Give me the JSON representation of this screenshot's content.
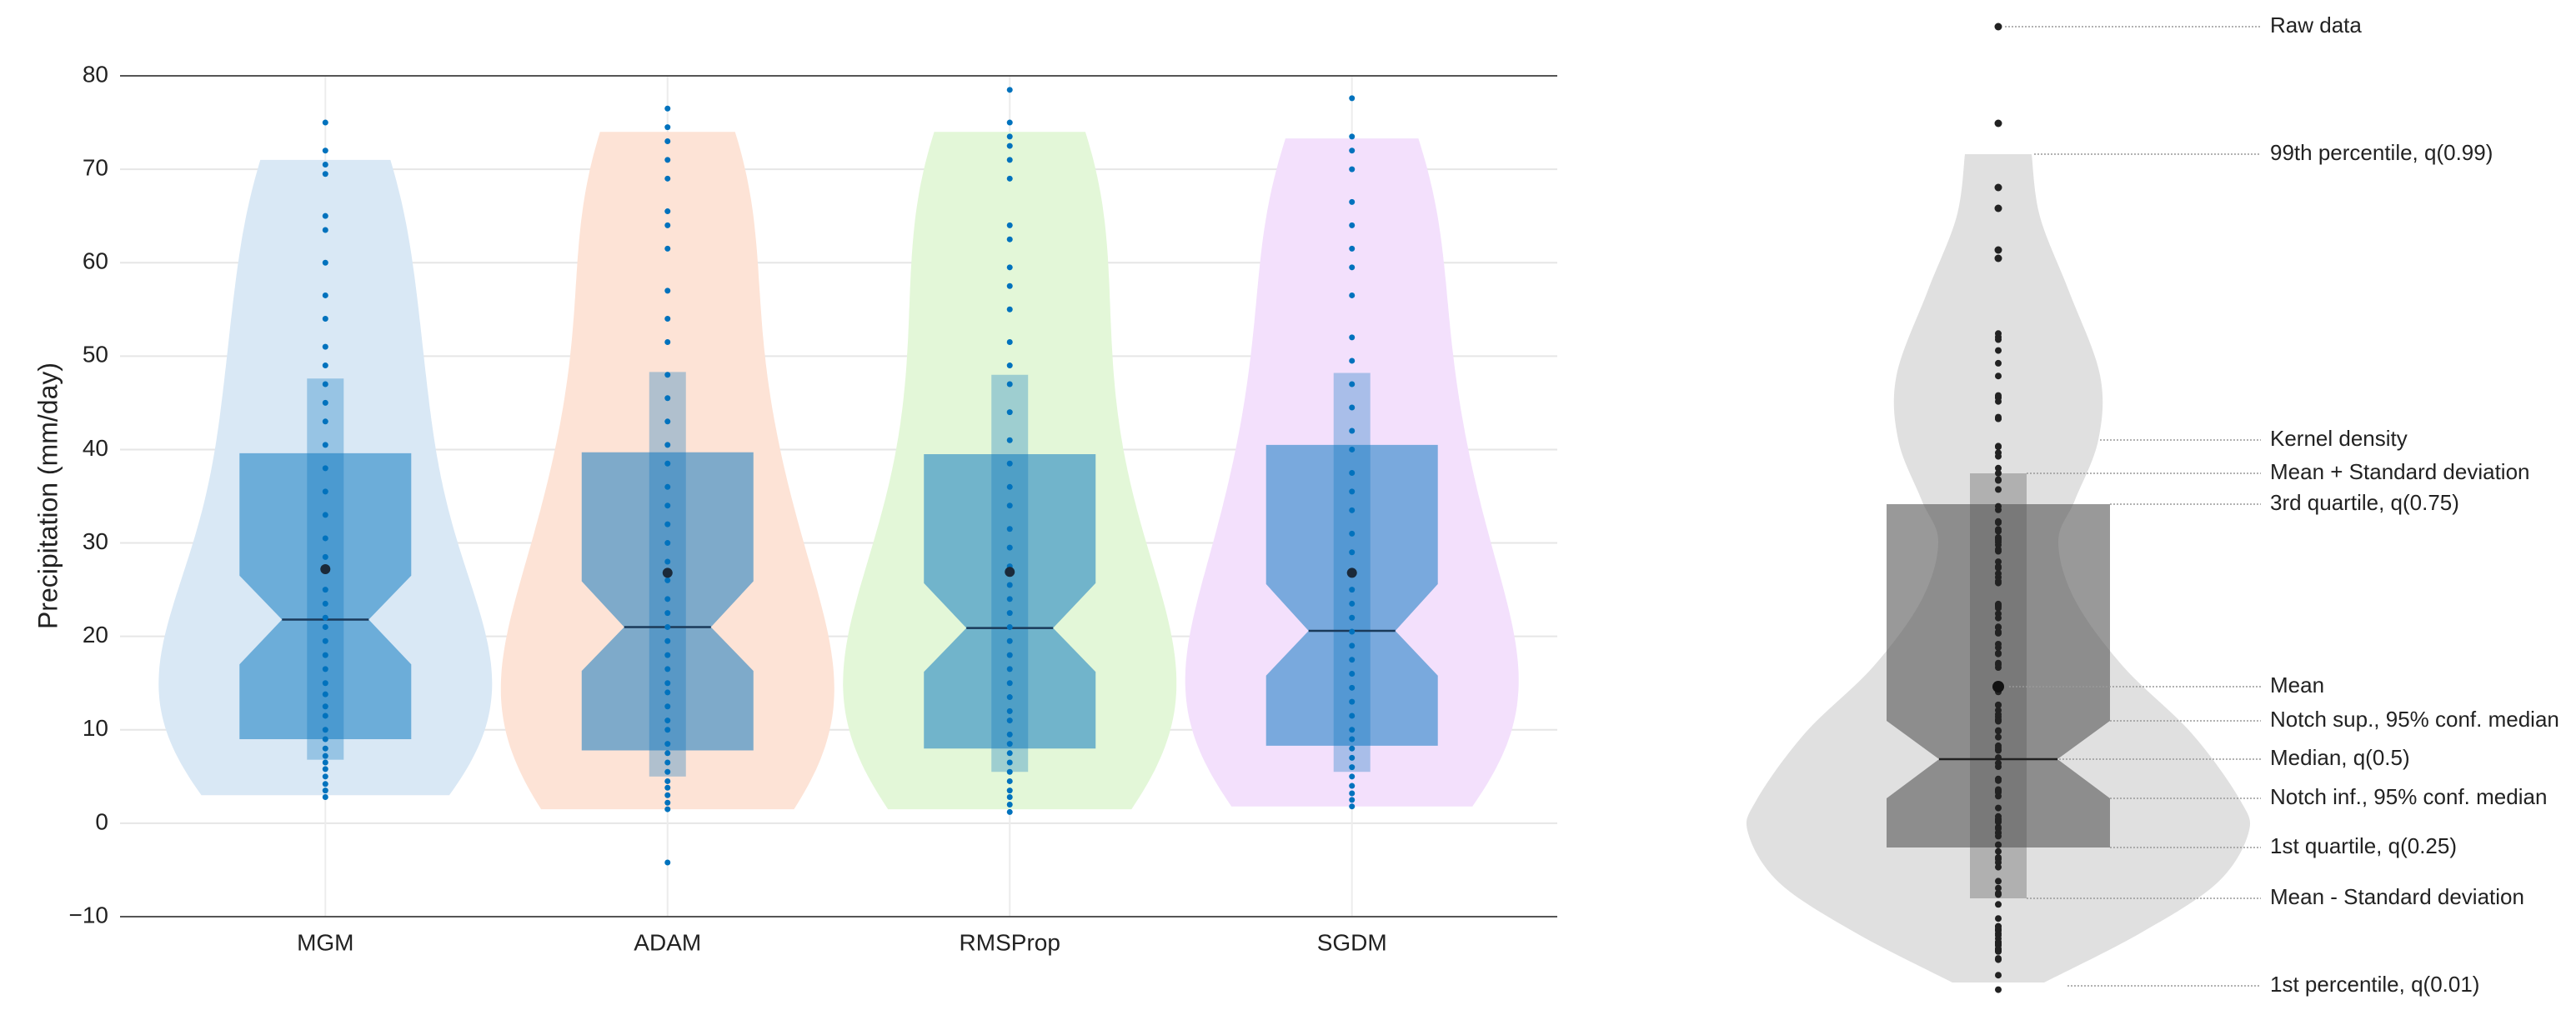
{
  "chart_data": {
    "type": "violin",
    "ylabel": "Precipitation (mm/day)",
    "categories": [
      "MGM",
      "ADAM",
      "RMSProp",
      "SGDM"
    ],
    "ylim": [
      -10,
      80
    ],
    "yticks": [
      {
        "value": -10,
        "label": "−10"
      },
      0,
      10,
      20,
      30,
      40,
      50,
      60,
      70,
      80
    ],
    "grid": true,
    "box_color": "#0072bd",
    "point_color": "#0072bd",
    "mean_color": "#1b2a3a",
    "median_color": "#1a3a5a",
    "series": [
      {
        "name": "MGM",
        "color": "#d9e8f5",
        "p01": 3,
        "p99": 71,
        "q1": 9,
        "notch_low": 17,
        "median": 21.8,
        "notch_high": 26.5,
        "q3": 39.6,
        "mean": 27.2,
        "mean_minus_std": 6.8,
        "mean_plus_std": 47.6,
        "points": [
          2.8,
          3.5,
          4.2,
          5,
          5.8,
          6.5,
          7.2,
          8,
          9,
          10,
          11.5,
          12.5,
          13.8,
          15,
          16.5,
          18,
          19.5,
          21,
          22,
          23.5,
          25,
          27,
          28.5,
          30.5,
          33,
          35.5,
          38,
          40.5,
          43,
          45,
          47,
          49,
          51,
          54,
          56.5,
          60,
          63.5,
          65,
          69.5,
          70.5,
          72,
          75
        ]
      },
      {
        "name": "ADAM",
        "color": "#fde3d6",
        "p01": 1.5,
        "p99": 74,
        "q1": 7.8,
        "notch_low": 16.3,
        "median": 21,
        "notch_high": 25.9,
        "q3": 39.7,
        "mean": 26.8,
        "mean_minus_std": 5,
        "mean_plus_std": 48.3,
        "points": [
          -4.2,
          1.5,
          2.2,
          3,
          3.8,
          4.5,
          5.5,
          6.5,
          7.5,
          8.5,
          10,
          11,
          12.5,
          14,
          15,
          16.5,
          18,
          19.5,
          21,
          22.5,
          24,
          26,
          28,
          30,
          32,
          34,
          36,
          38.5,
          40.5,
          43,
          45.5,
          48,
          51.5,
          54,
          57,
          61.5,
          64,
          65.5,
          69,
          71,
          73,
          74.5,
          76.5
        ]
      },
      {
        "name": "RMSProp",
        "color": "#e3f7d8",
        "p01": 1.5,
        "p99": 74,
        "q1": 8,
        "notch_low": 16.2,
        "median": 20.9,
        "notch_high": 25.7,
        "q3": 39.5,
        "mean": 26.9,
        "mean_minus_std": 5.5,
        "mean_plus_std": 48,
        "points": [
          1.2,
          2,
          2.8,
          3.5,
          4.5,
          5.5,
          6.5,
          7.5,
          8.5,
          9.5,
          11,
          12,
          13.5,
          15,
          16.5,
          18,
          19.5,
          21,
          22.5,
          24,
          25.5,
          27.5,
          29.5,
          31.5,
          34,
          36,
          38.5,
          41,
          44,
          47,
          49,
          51.5,
          55,
          57.5,
          59.5,
          62.5,
          64,
          69,
          71,
          72.5,
          73.5,
          75,
          78.5
        ]
      },
      {
        "name": "SGDM",
        "color": "#f3e0fc",
        "p01": 1.8,
        "p99": 73.3,
        "q1": 8.3,
        "notch_low": 15.8,
        "median": 20.6,
        "notch_high": 25.6,
        "q3": 40.5,
        "mean": 26.8,
        "mean_minus_std": 5.5,
        "mean_plus_std": 48.2,
        "points": [
          1.8,
          2.5,
          3.2,
          4,
          5,
          6,
          7,
          8,
          9,
          10,
          11.5,
          13,
          14.5,
          16,
          17.5,
          19,
          20.5,
          22,
          23.5,
          25,
          27,
          29,
          31,
          33.5,
          35.5,
          37.5,
          40,
          42,
          44.5,
          47,
          49.5,
          52,
          56.5,
          59.5,
          61.5,
          64,
          66.5,
          70,
          72,
          73.5,
          77.6
        ]
      }
    ]
  },
  "guide": {
    "labels": [
      "Raw data",
      "99th percentile, q(0.99)",
      "Kernel density",
      "Mean + Standard deviation",
      "3rd quartile, q(0.75)",
      "Mean",
      "Notch sup., 95% conf. median",
      "Median, q(0.5)",
      "Notch inf., 95% conf. median",
      "1st quartile, q(0.25)",
      "Mean - Standard deviation",
      "1st percentile, q(0.01)"
    ]
  }
}
